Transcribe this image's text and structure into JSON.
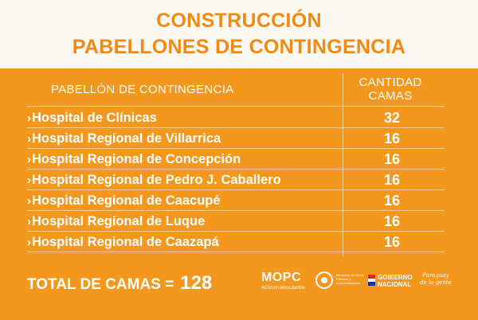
{
  "title": {
    "line1": "CONSTRUCCIÓN",
    "line2": "PABELLONES DE CONTINGENCIA"
  },
  "table": {
    "header_name": "PABELLÓN DE CONTINGENCIA",
    "header_count_line1": "CANTIDAD",
    "header_count_line2": "CAMAS",
    "rows": [
      {
        "name": "Hospital de Clínicas",
        "camas": "32"
      },
      {
        "name": "Hospital Regional de Villarrica",
        "camas": "16"
      },
      {
        "name": "Hospital Regional de Concepción",
        "camas": "16"
      },
      {
        "name": "Hospital Regional de Pedro J. Caballero",
        "camas": "16"
      },
      {
        "name": "Hospital Regional de Caacupé",
        "camas": "16"
      },
      {
        "name": "Hospital Regional de Luque",
        "camas": "16"
      },
      {
        "name": "Hospital Regional de Caazapá",
        "camas": "16"
      }
    ]
  },
  "total": {
    "label": "TOTAL DE CAMAS =",
    "value": "128"
  },
  "logos": {
    "mopc": "MOPC",
    "mopc_tagline": "#ConstruimosJuntos",
    "ministry": "Ministerio de Obras Públicas y Comunicaciones",
    "gobierno_line1": "GOBIERNO",
    "gobierno_line2": "NACIONAL",
    "slogan_line1": "Paraguay",
    "slogan_line2": "de la gente"
  },
  "colors": {
    "accent": "#f08a14",
    "panel": "#f3971d",
    "text_on_panel": "#ffffff"
  }
}
